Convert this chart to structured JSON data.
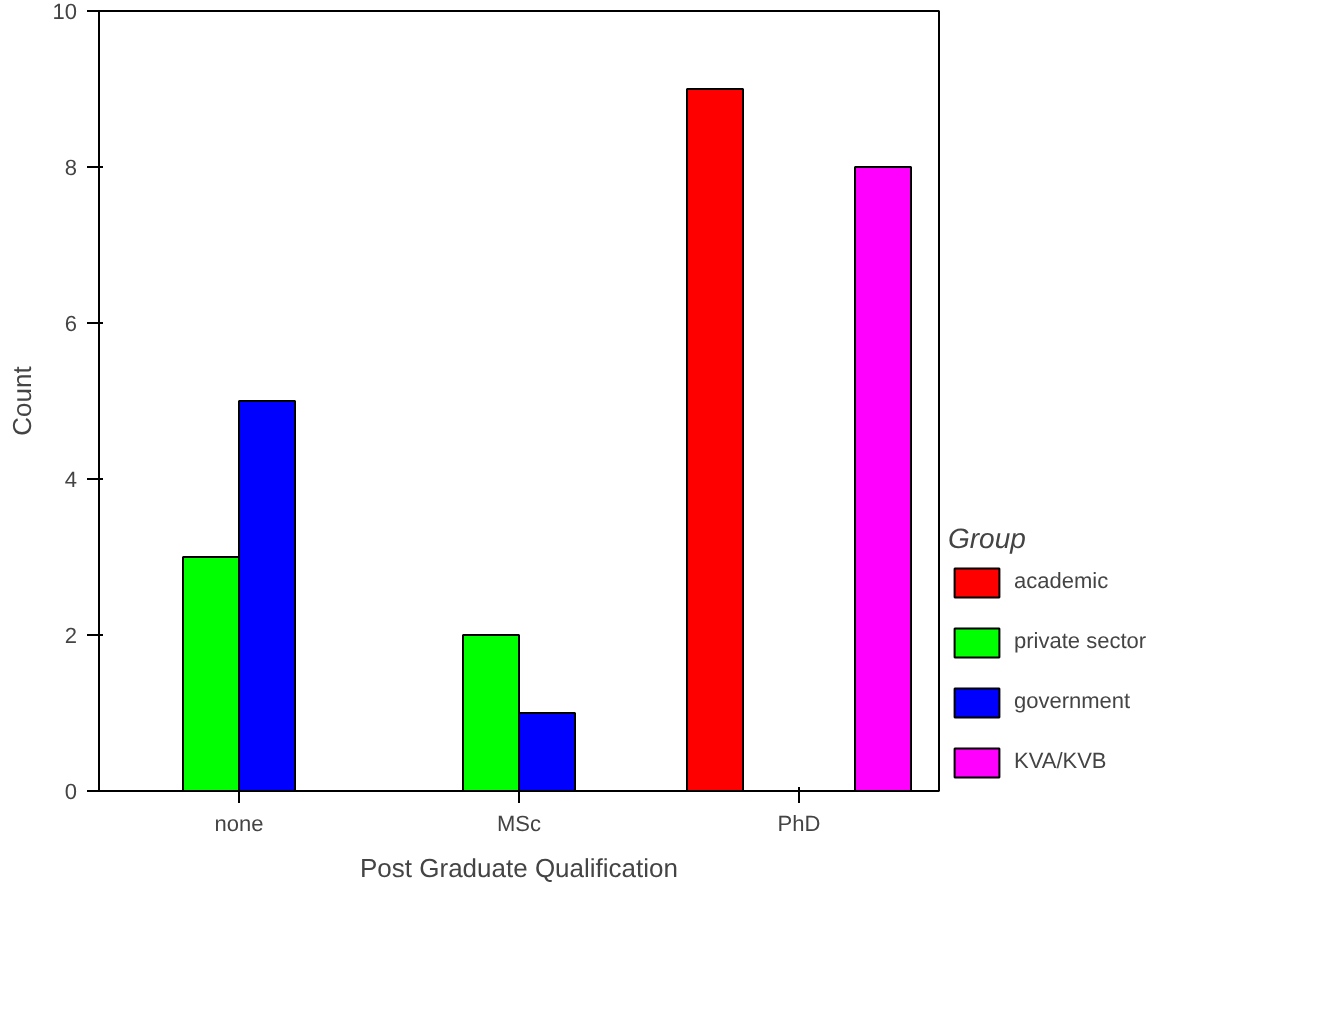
{
  "chart_data": {
    "type": "bar",
    "categories": [
      "none",
      "MSc",
      "PhD"
    ],
    "xlabel": "Post Graduate Qualification",
    "ylabel": "Count",
    "legend_title": "Group",
    "legend": "right",
    "ylim": [
      0,
      10
    ],
    "yticks": [
      0,
      2,
      4,
      6,
      8,
      10
    ],
    "series": [
      {
        "name": "academic",
        "color": "#ff0000",
        "values": [
          null,
          null,
          9
        ]
      },
      {
        "name": "private sector",
        "color": "#00ff00",
        "values": [
          3,
          2,
          null
        ]
      },
      {
        "name": "government",
        "color": "#0000ff",
        "values": [
          5,
          1,
          null
        ]
      },
      {
        "name": "KVA/KVB",
        "color": "#ff00ff",
        "values": [
          null,
          null,
          8
        ]
      }
    ]
  }
}
